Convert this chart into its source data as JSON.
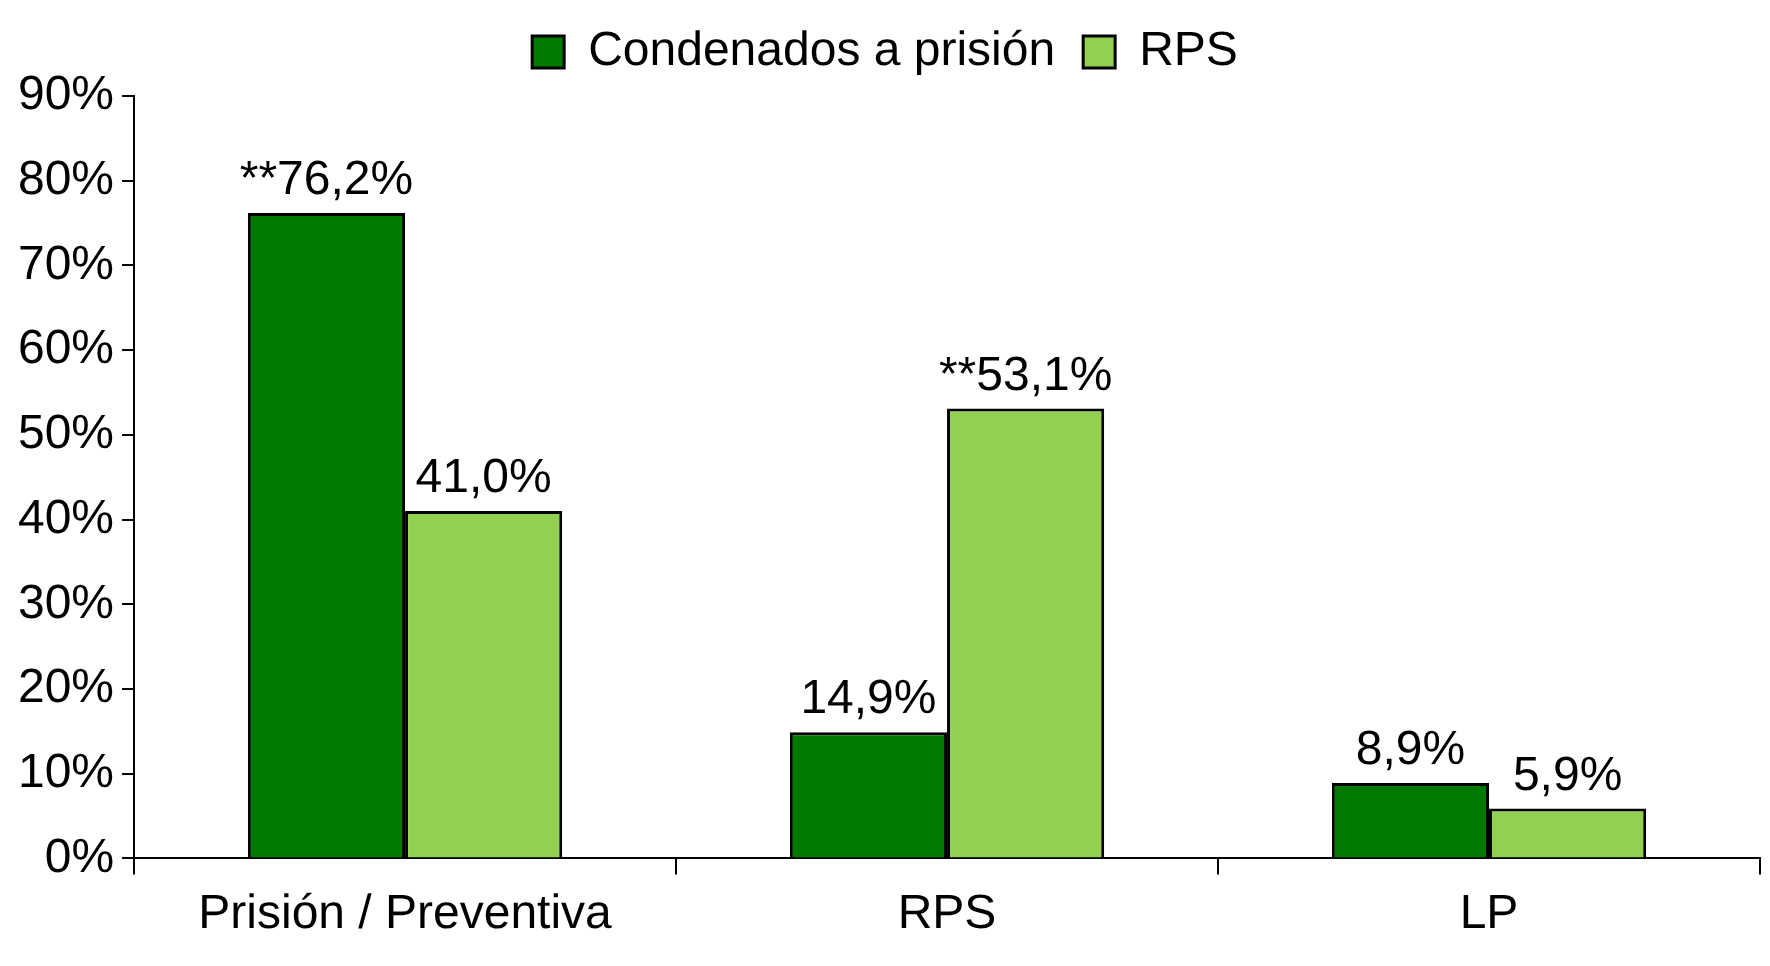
{
  "chart_data": {
    "type": "bar",
    "categories": [
      "Prisión / Preventiva",
      "RPS",
      "LP"
    ],
    "series": [
      {
        "name": "Condenados a prisión",
        "color": "#007a00",
        "values": [
          76.2,
          14.9,
          8.9
        ],
        "value_labels": [
          "**76,2%",
          "14,9%",
          "8,9%"
        ]
      },
      {
        "name": "RPS",
        "color": "#92d050",
        "values": [
          41.0,
          53.1,
          5.9
        ],
        "value_labels": [
          "41,0%",
          "**53,1%",
          "5,9%"
        ]
      }
    ],
    "ylim": [
      0,
      90
    ],
    "yticks": [
      {
        "value": 0,
        "label": "0%"
      },
      {
        "value": 10,
        "label": "10%"
      },
      {
        "value": 20,
        "label": "20%"
      },
      {
        "value": 30,
        "label": "30%"
      },
      {
        "value": 40,
        "label": "40%"
      },
      {
        "value": 50,
        "label": "50%"
      },
      {
        "value": 60,
        "label": "60%"
      },
      {
        "value": 70,
        "label": "70%"
      },
      {
        "value": 80,
        "label": "80%"
      },
      {
        "value": 90,
        "label": "90%"
      }
    ],
    "grid": false,
    "legend": "top"
  }
}
